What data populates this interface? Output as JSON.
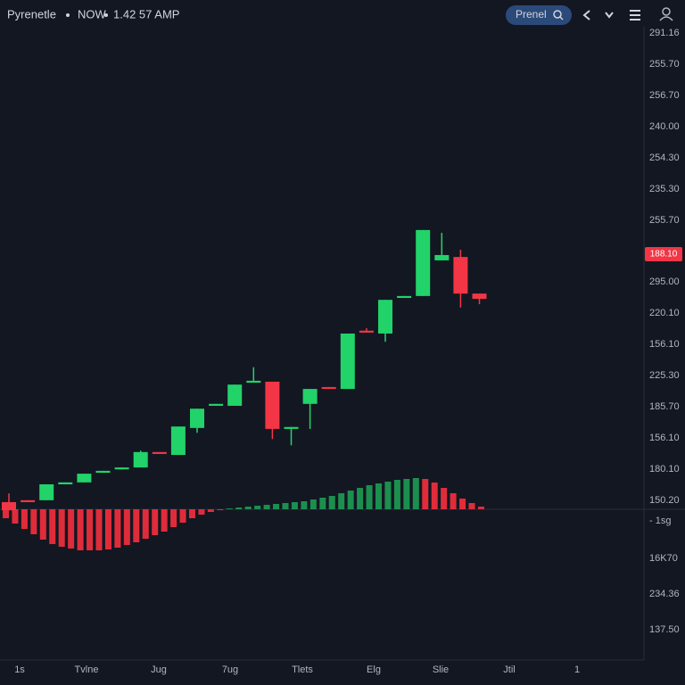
{
  "header": {
    "symbol": "Pyrenetle",
    "market": "NOW",
    "time": "1.42 57 AMP"
  },
  "search": {
    "placeholder": "Prenel"
  },
  "chart": {
    "ylim": [
      0,
      100
    ],
    "candles": {
      "open": [
        1.3,
        1.7,
        1.7,
        5.0,
        5.4,
        7.4,
        8.1,
        8.5,
        11.7,
        11.1,
        16.7,
        21.3,
        21.3,
        26.1,
        26.3,
        16.5,
        21.7,
        25.2,
        24.8,
        36.9,
        36.3,
        43.7,
        44.1,
        51.5,
        52.2,
        44.6
      ],
      "high": [
        3.1,
        1.7,
        5.0,
        5.4,
        7.2,
        7.8,
        8.5,
        12.0,
        11.7,
        17.0,
        20.7,
        21.7,
        25.7,
        29.3,
        26.3,
        16.9,
        24.8,
        25.2,
        36.3,
        37.4,
        43.3,
        44.1,
        57.8,
        57.2,
        53.7,
        44.6
      ],
      "low": [
        -0.4,
        1.3,
        1.7,
        5.0,
        5.4,
        7.4,
        8.1,
        8.5,
        11.3,
        11.1,
        15.7,
        21.3,
        21.3,
        26.1,
        14.4,
        13.1,
        16.5,
        24.8,
        24.8,
        36.5,
        34.6,
        43.7,
        44.1,
        51.5,
        41.7,
        42.4
      ],
      "close": [
        -0.4,
        1.3,
        5.0,
        5.4,
        7.2,
        7.8,
        8.5,
        11.7,
        11.3,
        17.0,
        20.7,
        21.7,
        25.7,
        26.5,
        16.5,
        16.9,
        24.8,
        24.8,
        36.3,
        36.5,
        43.3,
        44.1,
        57.8,
        52.6,
        44.6,
        43.5
      ]
    },
    "price_labels": [
      "291.16",
      "255.70",
      "256.70",
      "240.00",
      "254.30",
      "235.30",
      "255.70",
      "295.00",
      "220.10",
      "156.10",
      "225.30",
      "185.70",
      "156.10",
      "180.10",
      "150.20"
    ],
    "current_price_label": "188.10",
    "histogram": {
      "ylim": [
        -50,
        50
      ],
      "values": [
        -10,
        -16,
        -22,
        -28,
        -34,
        -39,
        -42,
        -44,
        -46,
        -46,
        -46,
        -45,
        -43,
        -40,
        -37,
        -33,
        -29,
        -25,
        -20,
        -15,
        -10,
        -6,
        -3,
        -1,
        1,
        2,
        3,
        4,
        5,
        6,
        7,
        8,
        9,
        11,
        13,
        15,
        18,
        21,
        24,
        27,
        29,
        31,
        33,
        34,
        35,
        34,
        30,
        24,
        18,
        12,
        7,
        3
      ]
    },
    "lower_labels": [
      "- 1sg",
      "16K70",
      "234.36",
      "137.50"
    ],
    "x_labels": [
      "1s",
      "Tvlne",
      "Jug",
      "7ug",
      "Tlets",
      "Elg",
      "Slie",
      "Jtil",
      "1"
    ]
  }
}
